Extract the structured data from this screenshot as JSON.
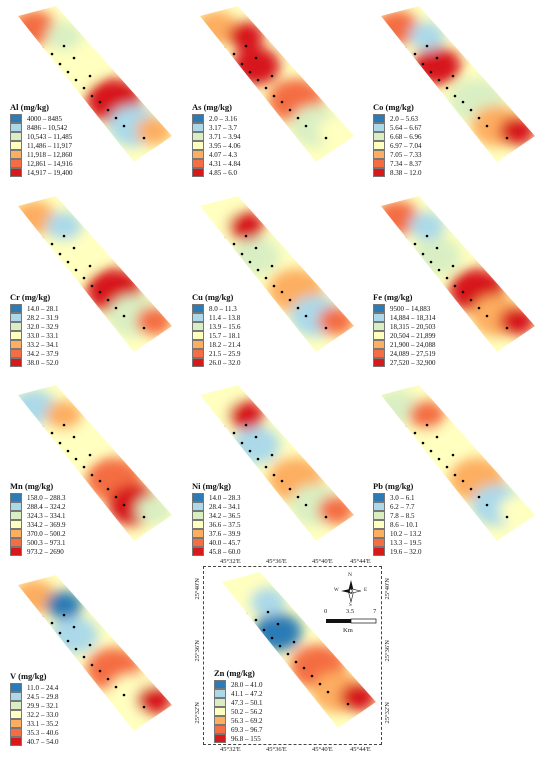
{
  "colors": [
    "#2c7bb6",
    "#abd9e9",
    "#d9efc3",
    "#ffffbf",
    "#fdae61",
    "#f46d43",
    "#d7191c"
  ],
  "panels": [
    {
      "title": "Al (mg/kg)",
      "classes": [
        "4000 – 8485",
        "8486 – 10,542",
        "10,543 – 11,485",
        "11,486 – 11,917",
        "11,918 – 12,860",
        "12,861 – 14,916",
        "14,917 – 19,400"
      ]
    },
    {
      "title": "As (mg/kg)",
      "classes": [
        "2.0 – 3.16",
        "3.17 – 3.7",
        "3.71 – 3.94",
        "3.95 – 4.06",
        "4.07 – 4.3",
        "4.31 – 4.84",
        "4.85 – 6.0"
      ]
    },
    {
      "title": "Co (mg/kg)",
      "classes": [
        "2.0 – 5.63",
        "5.64 – 6.67",
        "6.68 – 6.96",
        "6.97 – 7.04",
        "7.05 – 7.33",
        "7.34 – 8.37",
        "8.38 – 12.0"
      ]
    },
    {
      "title": "Cr (mg/kg)",
      "classes": [
        "14.0 – 28.1",
        "28.2 – 31.9",
        "32.0 – 32.9",
        "33.0 – 33.1",
        "33.2 – 34.1",
        "34.2 – 37.9",
        "38.0 – 52.0"
      ]
    },
    {
      "title": "Cu (mg/kg)",
      "classes": [
        "8.0 – 11.3",
        "11.4 – 13.8",
        "13.9 – 15.6",
        "15.7 – 18.1",
        "18.2 – 21.4",
        "21.5 – 25.9",
        "26.0 – 32.0"
      ]
    },
    {
      "title": "Fe (mg/kg)",
      "classes": [
        "9500 – 14,883",
        "14,884 – 18,314",
        "18,315 – 20,503",
        "20,504 – 21,899",
        "21,900 – 24,088",
        "24,089 – 27,519",
        "27,520 – 32,900"
      ]
    },
    {
      "title": "Mn (mg/kg)",
      "classes": [
        "158.0 – 288.3",
        "288.4 – 324.2",
        "324.3 – 334.1",
        "334.2 – 369.9",
        "370.0 – 500.2",
        "500.3 – 973.1",
        "973.2 – 2690"
      ]
    },
    {
      "title": "Ni (mg/kg)",
      "classes": [
        "14.0 – 28.3",
        "28.4 – 34.1",
        "34.2 – 36.5",
        "36.6 – 37.5",
        "37.6 – 39.9",
        "40.0 – 45.7",
        "45.8 – 60.0"
      ]
    },
    {
      "title": "Pb (mg/kg)",
      "classes": [
        "3.0 – 6.1",
        "6.2 – 7.7",
        "7.8 – 8.5",
        "8.6 – 10.1",
        "10.2 – 13.2",
        "13.3 – 19.5",
        "19.6 – 32.0"
      ]
    },
    {
      "title": "V (mg/kg)",
      "classes": [
        "11.0 – 24.4",
        "24.5 – 29.8",
        "29.9 – 32.1",
        "32.2 – 33.0",
        "33.1 – 35.2",
        "35.3 – 40.6",
        "40.7 – 54.0"
      ]
    },
    {
      "title": "Zn (mg/kg)",
      "classes": [
        "28.0 – 41.0",
        "41.1 – 47.2",
        "47.3 – 50.1",
        "50.2 – 56.2",
        "56.3 – 69.2",
        "69.3 – 96.7",
        "96.8 – 155"
      ]
    }
  ],
  "map_frame": {
    "lon_labels": [
      "45°32'E",
      "45°36'E",
      "45°40'E",
      "45°44'E"
    ],
    "lat_labels": [
      "25°40'N",
      "25°36'N",
      "25°32'N"
    ],
    "scale_labels": [
      "0",
      "3.5",
      "7"
    ],
    "scale_unit": "Km",
    "north_label": "N",
    "compass_labels": [
      "W",
      "E",
      "S"
    ]
  }
}
